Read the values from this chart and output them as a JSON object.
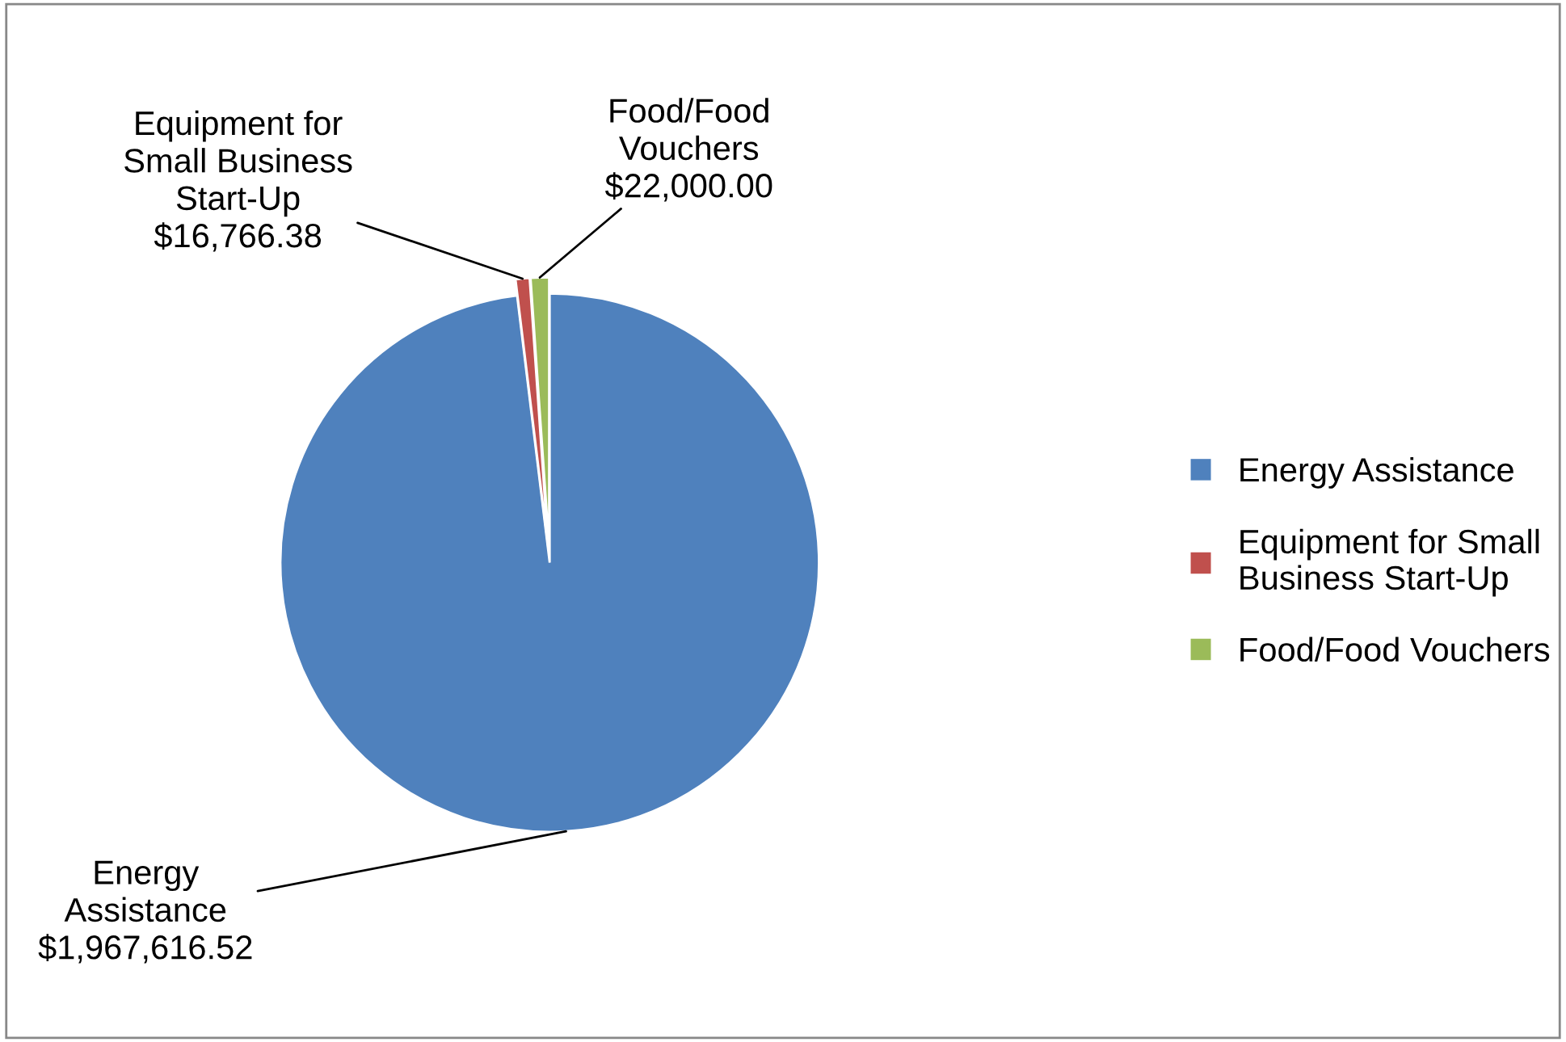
{
  "chart_data": {
    "type": "pie",
    "categories": [
      "Energy Assistance",
      "Equipment for Small Business Start-Up",
      "Food/Food Vouchers"
    ],
    "values": [
      1967616.52,
      16766.38,
      22000.0
    ],
    "colors": [
      "#4f81bd",
      "#c0504d",
      "#9bbb59"
    ],
    "value_labels": [
      "$1,967,616.52",
      "$16,766.38",
      "$22,000.00"
    ],
    "legend": "right"
  }
}
